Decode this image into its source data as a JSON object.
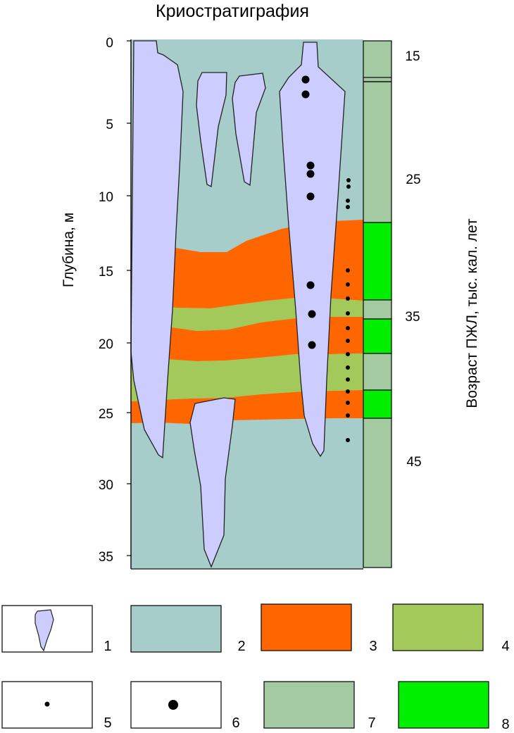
{
  "title": "Криостратиграфия",
  "depth_axis": {
    "label": "Глубина, м",
    "ticks": [
      "0",
      "5",
      "10",
      "15",
      "20",
      "25",
      "30",
      "35"
    ]
  },
  "age_axis": {
    "label": "Возраст ПЖЛ,  тыс. кал. лет",
    "ticks": [
      "15",
      "25",
      "35",
      "45"
    ]
  },
  "colors": {
    "ice_wedge": "#ccccff",
    "host_sediment": "#a6cdca",
    "orange_layer": "#ff6600",
    "olive_layer": "#a3c95a",
    "age_column_pale": "#a3caa1",
    "age_column_bright": "#00ee00"
  },
  "legend": [
    {
      "number": "1",
      "icon": "ice-wedge-icon"
    },
    {
      "number": "2",
      "icon": "host-sediment-swatch"
    },
    {
      "number": "3",
      "icon": "orange-layer-swatch"
    },
    {
      "number": "4",
      "icon": "olive-layer-swatch"
    },
    {
      "number": "5",
      "icon": "small-dot-icon"
    },
    {
      "number": "6",
      "icon": "large-dot-icon"
    },
    {
      "number": "7",
      "icon": "pale-green-swatch"
    },
    {
      "number": "8",
      "icon": "bright-green-swatch"
    }
  ]
}
